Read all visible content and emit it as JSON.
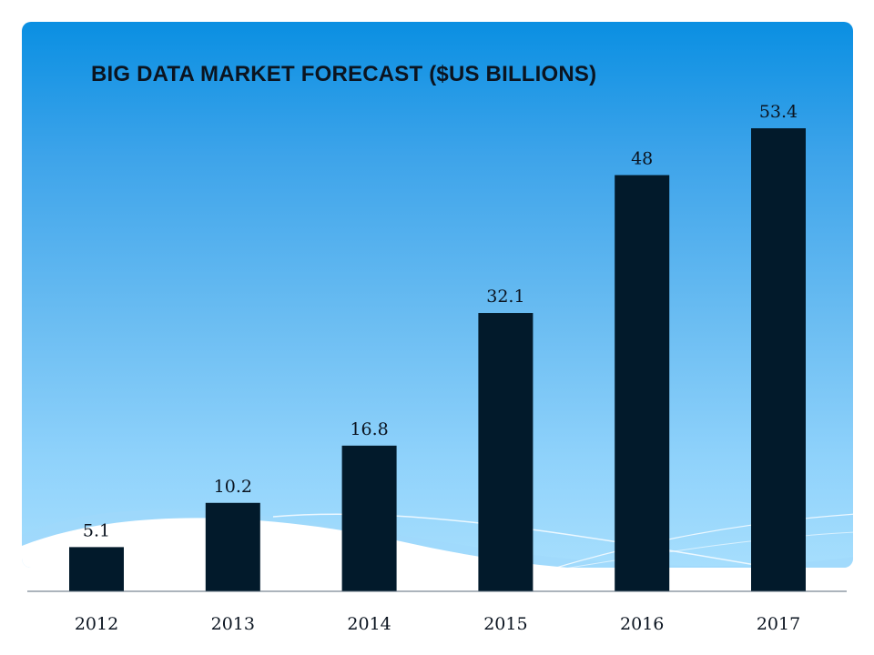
{
  "chart_data": {
    "type": "bar",
    "title": "BIG DATA MARKET FORECAST ($US BILLIONS)",
    "categories": [
      "2012",
      "2013",
      "2014",
      "2015",
      "2016",
      "2017"
    ],
    "values": [
      5.1,
      10.2,
      16.8,
      32.1,
      48,
      53.4
    ],
    "value_labels": [
      "5.1",
      "10.2",
      "16.8",
      "32.1",
      "48",
      "53.4"
    ],
    "xlabel": "",
    "ylabel": "",
    "ylim": [
      0,
      53.4
    ],
    "grid": false,
    "legend": "none",
    "bar_color": "#021a2b"
  },
  "colors": {
    "background_top": "#0a8fe2",
    "background_bottom": "#a6defd",
    "bar": "#021a2b",
    "text": "#0b1420"
  }
}
